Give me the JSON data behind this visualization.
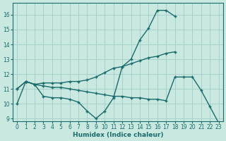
{
  "xlabel": "Humidex (Indice chaleur)",
  "ylabel": "",
  "bg_color": "#c8e8e0",
  "grid_color": "#a8d0cc",
  "line_color": "#1a6b6b",
  "xlim": [
    -0.5,
    23.5
  ],
  "ylim": [
    8.8,
    16.8
  ],
  "yticks": [
    9,
    10,
    11,
    12,
    13,
    14,
    15,
    16
  ],
  "xticks": [
    0,
    1,
    2,
    3,
    4,
    5,
    6,
    7,
    8,
    9,
    10,
    11,
    12,
    13,
    14,
    15,
    16,
    17,
    18,
    19,
    20,
    21,
    22,
    23
  ],
  "line1_y": [
    10.0,
    11.5,
    11.3,
    10.5,
    10.4,
    10.4,
    10.3,
    10.1,
    9.5,
    9.0,
    9.5,
    10.4,
    12.5,
    13.0,
    14.3,
    15.1,
    16.3,
    16.3,
    15.9,
    null,
    null,
    null,
    null,
    null
  ],
  "line2_y": [
    11.0,
    11.5,
    11.3,
    11.4,
    11.4,
    11.4,
    11.5,
    11.5,
    11.6,
    11.8,
    12.1,
    12.4,
    12.5,
    12.7,
    12.9,
    13.1,
    13.2,
    13.4,
    13.5,
    null,
    null,
    null,
    null,
    null
  ],
  "line3_y": [
    11.0,
    11.5,
    11.3,
    11.2,
    11.1,
    11.1,
    11.0,
    10.9,
    10.8,
    10.7,
    10.6,
    10.5,
    10.5,
    10.4,
    10.4,
    10.3,
    10.3,
    10.2,
    11.8,
    11.8,
    11.8,
    10.9,
    9.8,
    8.7
  ]
}
